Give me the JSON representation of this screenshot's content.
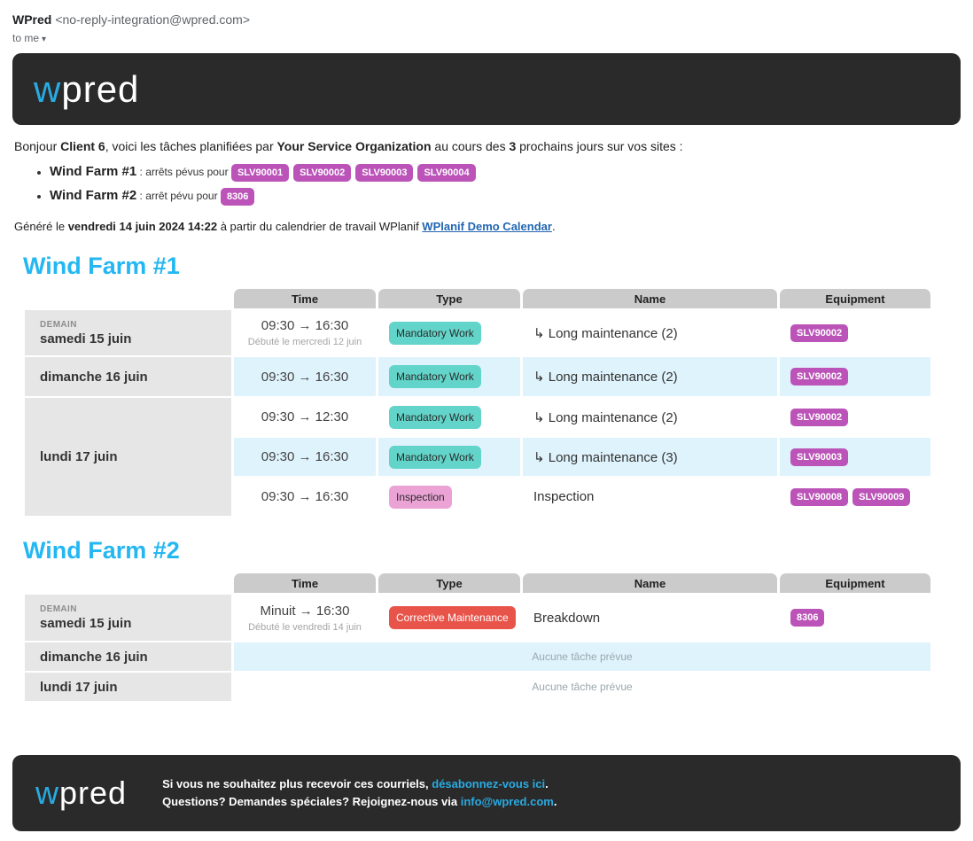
{
  "email_header": {
    "sender_name": "WPred",
    "sender_address": "<no-reply-integration@wpred.com>",
    "to_label": "to me",
    "dropdown_icon": "▾"
  },
  "brand": {
    "logo_blue_part": "w",
    "logo_white_part": "pred"
  },
  "intro": {
    "prefix": "Bonjour ",
    "client": "Client 6",
    "mid1": ", voici les tâches planifiées par ",
    "organization": "Your Service Organization",
    "mid2": " au cours des ",
    "days_count": "3",
    "suffix": " prochains jours sur vos sites :"
  },
  "summary_items": [
    {
      "site": "Wind Farm #1",
      "text": " : arrêts pévus pour ",
      "badges": [
        "SLV90001",
        "SLV90002",
        "SLV90003",
        "SLV90004"
      ]
    },
    {
      "site": "Wind Farm #2",
      "text": " : arrêt pévu pour ",
      "badges": [
        "8306"
      ]
    }
  ],
  "generated": {
    "prefix": "Généré le ",
    "datetime": "vendredi 14 juin 2024 14:22",
    "mid": " à partir du calendrier de travail WPlanif ",
    "link": "WPlanif Demo Calendar",
    "suffix": "."
  },
  "sections": [
    {
      "title": "Wind Farm #1",
      "columns": [
        "Time",
        "Type",
        "Name",
        "Equipment"
      ],
      "days": [
        {
          "tag": "DEMAIN",
          "date": "samedi 15 juin",
          "tasks": [
            {
              "time": "09:30 → 16:30",
              "note": "Débuté le mercredi 12 juin",
              "type": "Mandatory Work",
              "name": "↳ Long maintenance (2)",
              "equipment": [
                "SLV90002"
              ]
            }
          ]
        },
        {
          "date": "dimanche 16 juin",
          "tasks": [
            {
              "time": "09:30 → 16:30",
              "type": "Mandatory Work",
              "name": "↳ Long maintenance (2)",
              "equipment": [
                "SLV90002"
              ]
            }
          ]
        },
        {
          "date": "lundi 17 juin",
          "tasks": [
            {
              "time": "09:30 → 12:30",
              "type": "Mandatory Work",
              "name": "↳ Long maintenance (2)",
              "equipment": [
                "SLV90002"
              ]
            },
            {
              "time": "09:30 → 16:30",
              "type": "Mandatory Work",
              "name": "↳ Long maintenance (3)",
              "equipment": [
                "SLV90003"
              ]
            },
            {
              "time": "09:30 → 16:30",
              "type": "Inspection",
              "name": "Inspection",
              "equipment": [
                "SLV90008",
                "SLV90009"
              ]
            }
          ]
        }
      ]
    },
    {
      "title": "Wind Farm #2",
      "columns": [
        "Time",
        "Type",
        "Name",
        "Equipment"
      ],
      "days": [
        {
          "tag": "DEMAIN",
          "date": "samedi 15 juin",
          "tasks": [
            {
              "time": "Minuit → 16:30",
              "note": "Débuté le vendredi 14 juin",
              "type": "Corrective Maintenance",
              "name": "Breakdown",
              "equipment": [
                "8306"
              ]
            }
          ]
        },
        {
          "date": "dimanche 16 juin",
          "empty_text": "Aucune tâche prévue"
        },
        {
          "date": "lundi 17 juin",
          "empty_text": "Aucune tâche prévue"
        }
      ]
    }
  ],
  "footer": {
    "line1_prefix": "Si vous ne souhaitez plus recevoir ces courriels, ",
    "line1_link": "désabonnez-vous ici",
    "line1_suffix": ".",
    "line2_prefix": "Questions? Demandes spéciales? Rejoignez-nous via ",
    "line2_link": "info@wpred.com",
    "line2_suffix": "."
  },
  "colors": {
    "brand_blue": "#29abe2",
    "heading_blue": "#24b7f2",
    "equipment_badge": "#bb53b8",
    "mandatory_work_badge": "#63d4c9",
    "inspection_badge": "#eba3d6",
    "corrective_badge": "#e8544a",
    "row_alt": "#dff3fc",
    "banner_bg": "#2a2a2a"
  }
}
